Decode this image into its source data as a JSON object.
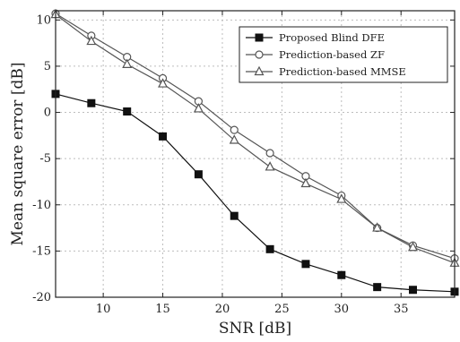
{
  "chart_data": {
    "type": "line",
    "xlabel": "SNR [dB]",
    "ylabel": "Mean square error [dB]",
    "xlim": [
      6,
      39.5
    ],
    "ylim": [
      -20,
      11
    ],
    "xticks": [
      10,
      15,
      20,
      25,
      30,
      35
    ],
    "yticks": [
      -20,
      -15,
      -10,
      -5,
      0,
      5,
      10
    ],
    "grid": true,
    "legend_position": "top-right",
    "x": [
      6,
      9,
      12,
      15,
      18,
      21,
      24,
      27,
      30,
      33,
      36,
      39.5
    ],
    "series": [
      {
        "name": "Proposed Blind DFE",
        "marker": "filled-square",
        "color": "#111111",
        "values": [
          2.0,
          1.0,
          0.1,
          -2.6,
          -6.7,
          -11.2,
          -14.8,
          -16.4,
          -17.6,
          -18.9,
          -19.2,
          -19.4
        ]
      },
      {
        "name": "Prediction-based ZF",
        "marker": "open-circle",
        "color": "#555555",
        "values": [
          10.7,
          8.3,
          6.0,
          3.7,
          1.2,
          -1.9,
          -4.4,
          -6.9,
          -9.0,
          -12.5,
          -14.4,
          -15.8
        ]
      },
      {
        "name": "Prediction-based MMSE",
        "marker": "open-triangle",
        "color": "#555555",
        "values": [
          10.6,
          7.7,
          5.2,
          3.1,
          0.4,
          -3.0,
          -5.9,
          -7.7,
          -9.4,
          -12.5,
          -14.6,
          -16.3
        ]
      }
    ]
  }
}
